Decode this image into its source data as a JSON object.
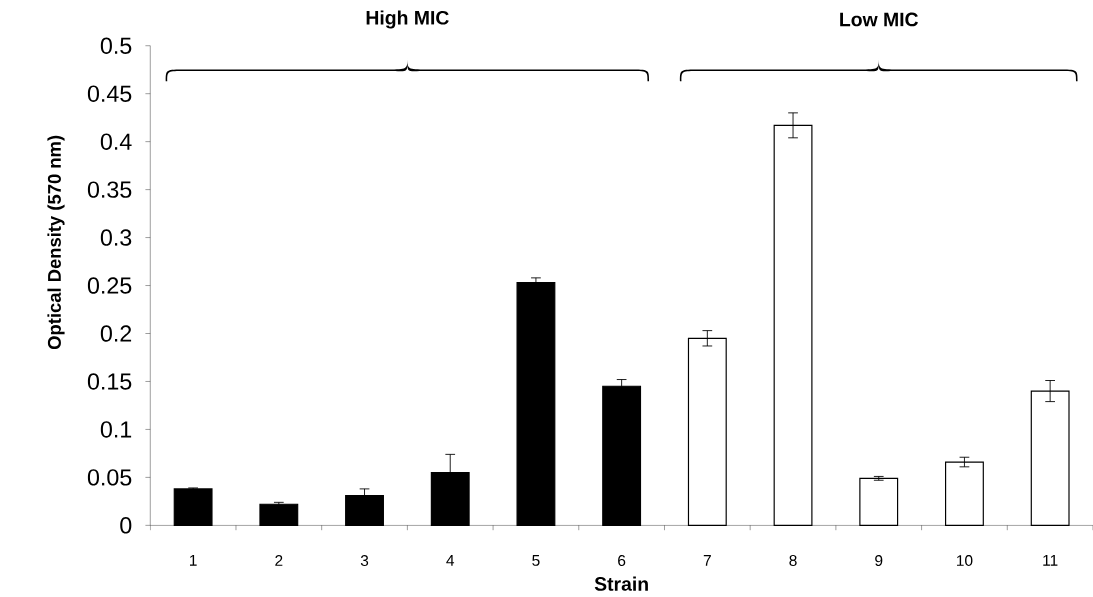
{
  "chart_data": {
    "type": "bar",
    "xlabel": "Strain",
    "ylabel": "Optical Density (570 nm)",
    "categories": [
      "1",
      "2",
      "3",
      "4",
      "5",
      "6",
      "7",
      "8",
      "9",
      "10",
      "11"
    ],
    "values": [
      0.038,
      0.022,
      0.031,
      0.055,
      0.253,
      0.145,
      0.195,
      0.417,
      0.049,
      0.066,
      0.14
    ],
    "errors": [
      0.001,
      0.002,
      0.007,
      0.019,
      0.005,
      0.007,
      0.008,
      0.013,
      0.002,
      0.005,
      0.011
    ],
    "colors": [
      "#000000",
      "#000000",
      "#000000",
      "#000000",
      "#000000",
      "#000000",
      "#ffffff",
      "#ffffff",
      "#ffffff",
      "#ffffff",
      "#ffffff"
    ],
    "ylim": [
      0,
      0.5
    ],
    "yticks": [
      0,
      0.05,
      0.1,
      0.15,
      0.2,
      0.25,
      0.3,
      0.35,
      0.4,
      0.45,
      0.5
    ],
    "annotations": [
      "High MIC",
      "Low MIC"
    ]
  }
}
